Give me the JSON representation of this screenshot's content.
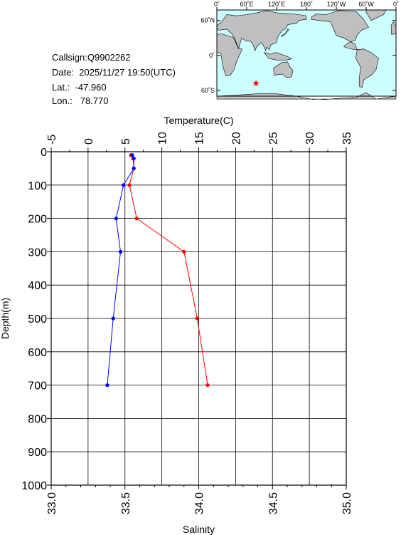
{
  "info": {
    "callsign": "Callsign:Q9902262",
    "date": "Date:  2025/11/27 19:50(UTC)",
    "lat": "Lat.:  -47.960",
    "lon": "Lon.:   78.770"
  },
  "map": {
    "top_labels": [
      "0˚",
      "60˚E",
      "120˚E",
      "180˚",
      "120˚W",
      "60˚W",
      "0˚"
    ],
    "lat_labels": [
      "60˚N",
      "0˚",
      "60˚S"
    ],
    "ocean_color": "#ccffff",
    "land_color": "#bfbfbf",
    "marker": {
      "lon": 78.77,
      "lat": -47.96,
      "color": "#ff0000",
      "icon": "star-icon"
    }
  },
  "chart_data": {
    "type": "line",
    "top_axis_label": "Temperature(C)",
    "bottom_axis_label": "Salinity",
    "ylabel": "Depth(m)",
    "temperature_ticks": [
      "-5",
      "0",
      "5",
      "10",
      "15",
      "20",
      "25",
      "30",
      "35"
    ],
    "temperature_range": [
      -5,
      35
    ],
    "salinity_ticks": [
      "33.0",
      "33.5",
      "34.0",
      "34.5",
      "35.0"
    ],
    "salinity_range": [
      33.0,
      35.0
    ],
    "depth_ticks": [
      "0",
      "100",
      "200",
      "300",
      "400",
      "500",
      "600",
      "700",
      "800",
      "900",
      "1000"
    ],
    "depth_range": [
      0,
      1000
    ],
    "grid": true,
    "series": [
      {
        "quantity": "temperature",
        "color": "#ff0000",
        "depth": [
          10,
          20,
          50,
          100,
          200,
          300,
          500,
          700
        ],
        "values": [
          5.8,
          6.1,
          6.2,
          5.6,
          6.6,
          13.0,
          14.8,
          16.2
        ]
      },
      {
        "quantity": "salinity",
        "color": "#0000ff",
        "depth": [
          10,
          20,
          50,
          100,
          200,
          300,
          500,
          700
        ],
        "values": [
          33.55,
          33.56,
          33.56,
          33.49,
          33.44,
          33.47,
          33.42,
          33.38
        ]
      }
    ]
  }
}
